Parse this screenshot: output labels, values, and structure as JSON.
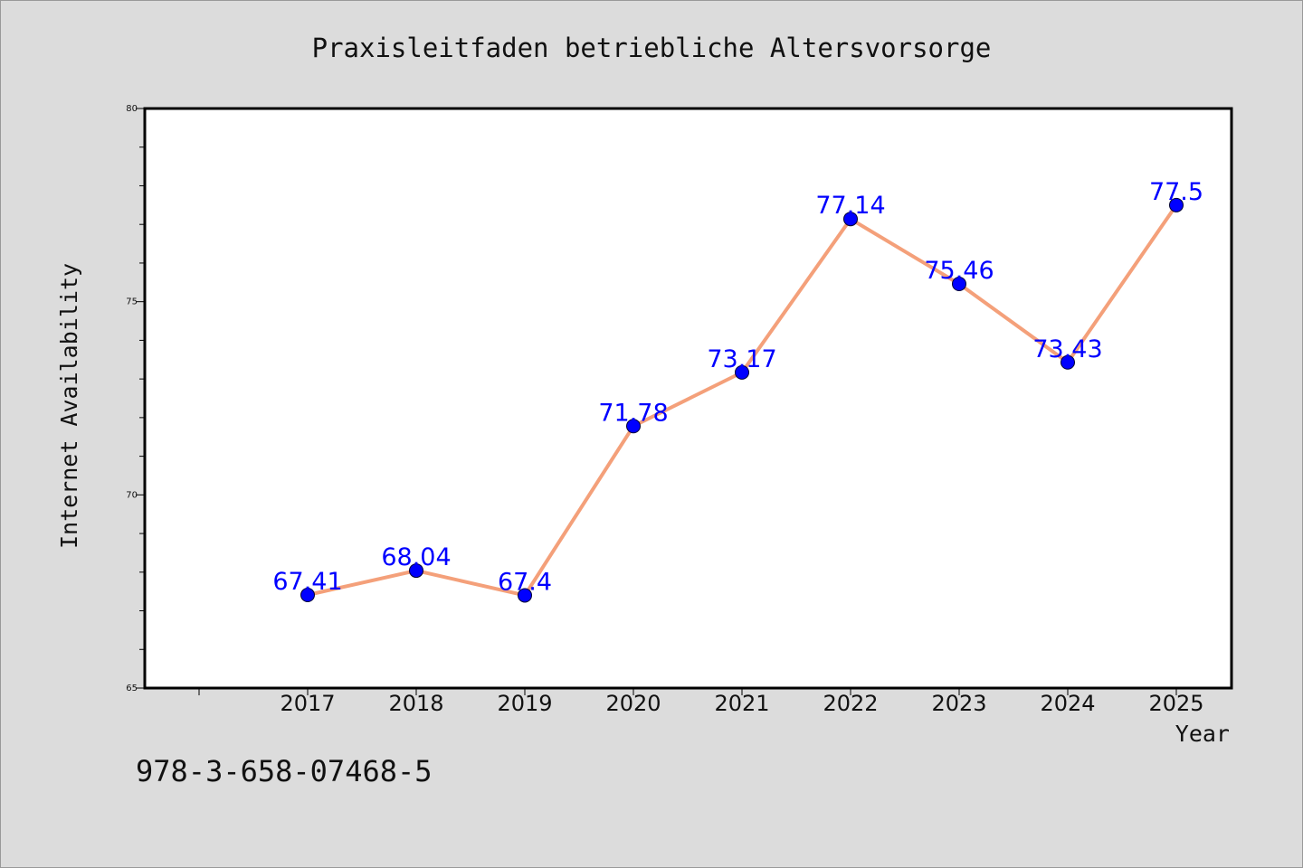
{
  "chart_data": {
    "type": "line",
    "title": "Praxisleitfaden betriebliche Altersvorsorge",
    "xlabel": "Year",
    "ylabel": "Internet Availability",
    "categories": [
      "2017",
      "2018",
      "2019",
      "2020",
      "2021",
      "2022",
      "2023",
      "2024",
      "2025"
    ],
    "series": [
      {
        "values": [
          67.41,
          68.04,
          67.4,
          71.78,
          73.17,
          77.14,
          75.46,
          73.43,
          77.5
        ],
        "data_labels": [
          "67.41",
          "68.04",
          "67.4",
          "71.78",
          "73.17",
          "77.14",
          "75.46",
          "73.43",
          "77.5"
        ]
      }
    ],
    "ylim": [
      65,
      80
    ],
    "y_ticks": [
      "65",
      "70",
      "75",
      "80"
    ],
    "grid": false,
    "colors": {
      "line": "#f4a07a",
      "marker": "#0000ff",
      "data_label": "#0000ff",
      "background": "#dcdcdc",
      "plot_background": "#ffffff"
    }
  },
  "footer": {
    "isbn": "978-3-658-07468-5"
  }
}
